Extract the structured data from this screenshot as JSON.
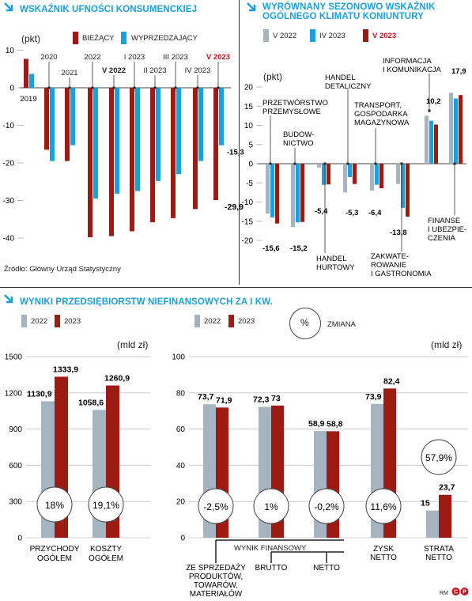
{
  "colors": {
    "current": "#9e1b14",
    "seasonal": "#1aa0dc",
    "grey": "#a4b4c0",
    "red": "#9e1b14",
    "v2023": "#c8101e",
    "title": "#1aa0dc"
  },
  "icons": {
    "title_arrow": "diagonal-arrow-icon",
    "logo": "cp-logo-icon"
  },
  "panel1": {
    "title": "WSKAŹNIK UFNOŚCI KONSUMENCKIEJ",
    "unit": "(pkt)",
    "legend": [
      "BIEŻĄCY",
      "WYPRZEDZAJĄCY"
    ],
    "source": "Źródło: Główny Urząd Statystyczny"
  },
  "panel2": {
    "title": "WYRÓWNANY SEZONOWO WSKAŹNIK OGÓLNEGO KLIMATU KONIUNTURY",
    "unit": "(pkt)",
    "legend": [
      "V 2022",
      "IV 2023",
      "V 2023"
    ]
  },
  "panel3": {
    "title": "WYNIKI PRZEDSIĘBIORSTW NIEFINANSOWYCH ZA I KW.",
    "legend": [
      "2022",
      "2023"
    ],
    "change_label": "%",
    "change_text": "ZMIANA",
    "unit_left": "(mld zł)",
    "unit_right": "(mld zł)",
    "group_label": "WYNIK FINANSOWY",
    "footer": "RM"
  },
  "chart_data": [
    {
      "type": "bar",
      "title": "WSKAŹNIK UFNOŚCI KONSUMENCKIEJ",
      "ylabel": "(pkt)",
      "ylim": [
        -45,
        10
      ],
      "yticks": [
        10,
        0,
        -10,
        -20,
        -30,
        -40
      ],
      "categories": [
        "2019",
        "2020",
        "2021",
        "2022",
        "V 2022",
        "I 2023",
        "II 2023",
        "III 2023",
        "IV 2023",
        "V 2023"
      ],
      "series": [
        {
          "name": "BIEŻĄCY",
          "values": [
            7.7,
            -16.5,
            -19.5,
            -39.8,
            -39.5,
            -38.2,
            -35.8,
            -34.7,
            -32.3,
            -29.9
          ]
        },
        {
          "name": "WYPRZEDZAJĄCY",
          "values": [
            3.7,
            -19.5,
            -15.3,
            -29.5,
            -28.2,
            -27.5,
            -24.8,
            -23,
            -19.5,
            -15.3
          ]
        }
      ],
      "value_labels": [
        "-15,3",
        "-29,9"
      ]
    },
    {
      "type": "bar",
      "title": "WYRÓWNANY SEZONOWO WSKAŹNIK OGÓLNEGO KLIMATU KONIUNTURY",
      "ylabel": "(pkt)",
      "ylim": [
        -20,
        20
      ],
      "yticks": [
        20,
        15,
        10,
        5,
        0,
        -5,
        -10,
        -15,
        -20
      ],
      "categories": [
        "PRZETWÓRSTWO PRZEMYSŁOWE",
        "BUDOWNICTWO",
        "HANDEL HURTOWY",
        "HANDEL DETALICZNY",
        "TRANSPORT, GOSPODARKA MAGAZYNOWA",
        "ZAKWATEROWANIE I GASTRONOMIA",
        "INFORMACJA I KOMUNIKACJA",
        "FINANSE I UBEZPIECZENIA"
      ],
      "series": [
        {
          "name": "V 2022",
          "values": [
            -13,
            -16.5,
            -1,
            -7.5,
            -7,
            -5.3,
            12.5,
            18.5
          ]
        },
        {
          "name": "IV 2023",
          "values": [
            -14,
            -15.3,
            -5.5,
            -3.5,
            -5.5,
            -11.5,
            11.2,
            17
          ]
        },
        {
          "name": "V 2023",
          "values": [
            -15.6,
            -15.2,
            -5.4,
            -5.3,
            -6.4,
            -13.8,
            10.2,
            17.9
          ]
        }
      ],
      "value_labels": [
        "-15,6",
        "-15,2",
        "-5,4",
        "-5,3",
        "-6,4",
        "-13,8",
        "10,2",
        "17,9"
      ]
    },
    {
      "type": "bar",
      "ylabel": "(mld zł)",
      "ylim": [
        0,
        1500
      ],
      "yticks": [
        1500,
        1200,
        900,
        600,
        300,
        0
      ],
      "categories": [
        "PRZYCHODY OGÓŁEM",
        "KOSZTY OGÓŁEM"
      ],
      "series": [
        {
          "name": "2022",
          "values": [
            1130.9,
            1058.6
          ]
        },
        {
          "name": "2023",
          "values": [
            1333.9,
            1260.9
          ]
        }
      ],
      "value_labels": [
        "1130,9",
        "1333,9",
        "1058,6",
        "1260,9"
      ],
      "changes": [
        "18%",
        "19,1%"
      ]
    },
    {
      "type": "bar",
      "ylabel": "(mld zł)",
      "ylim": [
        0,
        100
      ],
      "yticks": [
        100,
        80,
        60,
        40,
        20,
        0
      ],
      "categories": [
        "ZE SPRZEDAŻY PRODUKTÓW, TOWARÓW, MATERIAŁÓW",
        "BRUTTO",
        "NETTO",
        "ZYSK NETTO",
        "STRATA NETTO"
      ],
      "series": [
        {
          "name": "2022",
          "values": [
            73.7,
            72.3,
            58.9,
            73.9,
            15
          ]
        },
        {
          "name": "2023",
          "values": [
            71.9,
            73,
            58.8,
            82.4,
            23.7
          ]
        }
      ],
      "value_labels": [
        "73,7",
        "71,9",
        "72,3",
        "73",
        "58,9",
        "58,8",
        "73,9",
        "82,4",
        "15",
        "23,7"
      ],
      "changes": [
        "-2,5%",
        "1%",
        "-0,2%",
        "11,6%",
        "57,9%"
      ]
    }
  ]
}
